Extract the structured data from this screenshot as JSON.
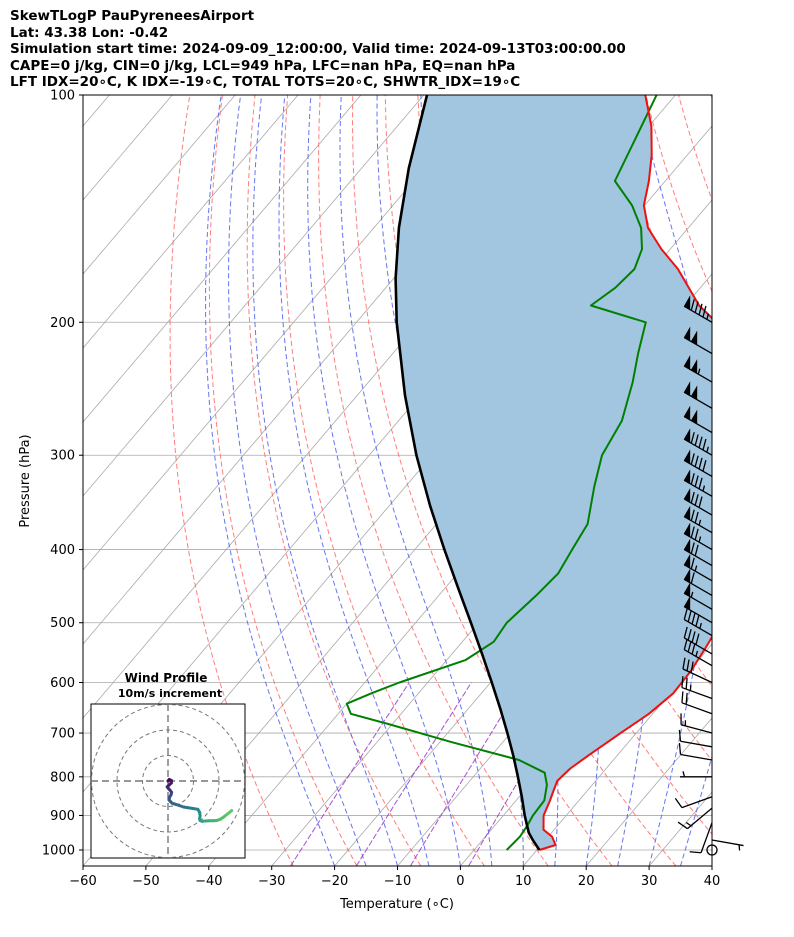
{
  "header": {
    "line1": "SkewTLogP PauPyreneesAirport",
    "line2": "Lat: 43.38   Lon: -0.42",
    "line3": "Simulation start time: 2024-09-09_12:00:00, Valid time: 2024-09-13T03:00:00.00",
    "line4": "CAPE=0 j/kg, CIN=0 j/kg, LCL=949 hPa, LFC=nan hPa, EQ=nan hPa",
    "line5": "LFT IDX=20∘C, K IDX=-19∘C, TOTAL TOTS=20∘C, SHWTR_IDX=19∘C"
  },
  "colors": {
    "temperature": "#ee1111",
    "dewpoint": "#008000",
    "parcel": "#000000",
    "fill": "#a2c6e0",
    "dry_adiabat": "#ff6666",
    "moist_adiabat": "#5566ee",
    "mixing_ratio": "#9933cc",
    "isotherm": "#aaaaaa"
  },
  "chart_data": {
    "type": "line",
    "title": "Skew-T Log-P",
    "xlabel": "Temperature (∘C)",
    "ylabel": "Pressure (hPa)",
    "xlim": [
      -60,
      40
    ],
    "ylim": [
      1050,
      100
    ],
    "x_ticks": [
      "−60",
      "−50",
      "−40",
      "−30",
      "−20",
      "−10",
      "0",
      "10",
      "20",
      "30",
      "40"
    ],
    "x_tick_values": [
      -60,
      -50,
      -40,
      -30,
      -20,
      -10,
      0,
      10,
      20,
      30,
      40
    ],
    "y_ticks": [
      "100",
      "200",
      "300",
      "400",
      "500",
      "600",
      "700",
      "800",
      "900",
      "1000"
    ],
    "y_tick_values": [
      100,
      200,
      300,
      400,
      500,
      600,
      700,
      800,
      900,
      1000
    ],
    "series": [
      {
        "name": "Temperature",
        "pressure": [
          1000,
          985,
          960,
          940,
          900,
          860,
          830,
          810,
          780,
          750,
          700,
          660,
          620,
          580,
          540,
          500,
          440,
          410,
          380,
          340,
          300,
          260,
          240,
          210,
          190,
          170,
          160,
          150,
          140,
          130,
          120,
          110,
          100
        ],
        "values": [
          10.4,
          12.3,
          10.6,
          8.3,
          6.4,
          5.4,
          4.5,
          3.9,
          4.3,
          5.4,
          7.5,
          9.4,
          10.5,
          10.3,
          9.5,
          8.5,
          7.6,
          6.6,
          4.5,
          0.6,
          -3.6,
          -10.5,
          -18.4,
          -28.0,
          -37.8,
          -46.1,
          -51.4,
          -56.4,
          -60.1,
          -62.6,
          -65.7,
          -69.6,
          -74.8
        ]
      },
      {
        "name": "Dewpoint",
        "pressure": [
          1000,
          960,
          930,
          900,
          860,
          820,
          790,
          760,
          720,
          680,
          660,
          640,
          620,
          600,
          560,
          530,
          500,
          460,
          430,
          400,
          370,
          330,
          300,
          270,
          240,
          220,
          200,
          190,
          180,
          170,
          160,
          150,
          140,
          130,
          100
        ],
        "values": [
          5.2,
          5.5,
          5.2,
          4.7,
          4.5,
          2.8,
          0.8,
          -5.0,
          -18.0,
          -31.0,
          -38.0,
          -40.0,
          -37.5,
          -34.5,
          -27.0,
          -25.0,
          -25.5,
          -24.5,
          -24.0,
          -25.0,
          -26.0,
          -30.0,
          -33.0,
          -34.5,
          -38.0,
          -41.0,
          -44.0,
          -55.0,
          -53.5,
          -53.0,
          -54.5,
          -57.5,
          -62.0,
          -68.0,
          -73.0
        ]
      },
      {
        "name": "Parcel",
        "pressure": [
          1000,
          990,
          970,
          949,
          900,
          850,
          800,
          750,
          700,
          650,
          600,
          550,
          500,
          450,
          400,
          350,
          300,
          250,
          200,
          175,
          150,
          125,
          100
        ],
        "values": [
          10.4,
          9.6,
          8.0,
          6.4,
          3.4,
          0.4,
          -2.9,
          -6.5,
          -10.5,
          -14.9,
          -19.8,
          -25.2,
          -31.2,
          -37.9,
          -45.3,
          -53.5,
          -62.5,
          -72.4,
          -83.6,
          -89.7,
          -96.0,
          -102.5,
          -109.5
        ]
      }
    ],
    "wind_barbs": {
      "pressure": [
        1000,
        970,
        920,
        880,
        850,
        800,
        760,
        730,
        700,
        660,
        630,
        600,
        570,
        550,
        520,
        500,
        480,
        460,
        440,
        420,
        400,
        380,
        360,
        340,
        320,
        300,
        280,
        260,
        240,
        220,
        200
      ],
      "speed_kt": [
        0,
        5,
        10,
        15,
        10,
        5,
        10,
        10,
        15,
        20,
        25,
        30,
        35,
        40,
        45,
        50,
        55,
        60,
        65,
        70,
        75,
        75,
        80,
        85,
        90,
        95,
        100,
        100,
        105,
        100,
        95
      ],
      "direction_deg": [
        0,
        100,
        200,
        230,
        250,
        270,
        280,
        280,
        285,
        290,
        290,
        295,
        300,
        300,
        300,
        300,
        300,
        300,
        300,
        300,
        300,
        300,
        300,
        300,
        300,
        300,
        300,
        300,
        300,
        300,
        300
      ]
    },
    "hodograph": {
      "title": "Wind Profile",
      "subtitle": "10m/s increment",
      "rings": 3,
      "u": [
        0,
        0.5,
        1.3,
        1.3,
        0.5,
        -0.3,
        0.2,
        0.8,
        1.4,
        1.2,
        0.6,
        0.4,
        1.0,
        1.6,
        2.8,
        4.4,
        6.1,
        7.9,
        9.8,
        11.7,
        12.4,
        12.6,
        12.4,
        12.6,
        13.4,
        14.6,
        16.0,
        17.6,
        19.0,
        20.5,
        22.0,
        23.5,
        25.0
      ],
      "v": [
        0,
        0.6,
        0.2,
        -0.8,
        -1.5,
        -2.3,
        -3.0,
        -3.6,
        -4.4,
        -5.4,
        -6.4,
        -7.4,
        -8.1,
        -8.7,
        -9.1,
        -9.6,
        -10.2,
        -10.5,
        -10.8,
        -11.1,
        -12.3,
        -13.6,
        -14.9,
        -15.5,
        -15.8,
        -15.7,
        -15.6,
        -15.6,
        -15.5,
        -15.0,
        -14.0,
        -12.8,
        -11.6
      ]
    }
  }
}
